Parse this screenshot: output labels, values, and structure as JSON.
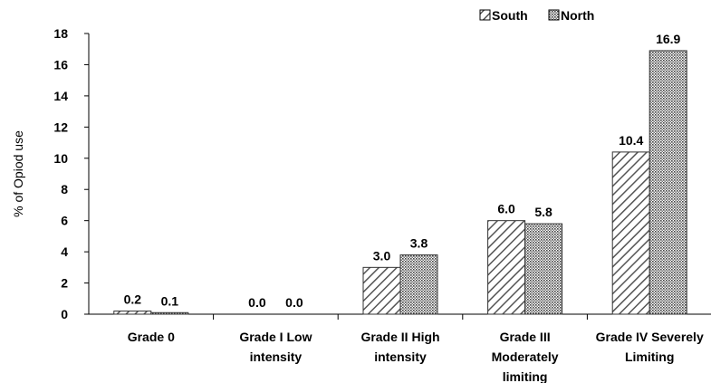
{
  "chart_data": {
    "type": "bar",
    "categories": [
      [
        "Grade 0"
      ],
      [
        "Grade I Low",
        "intensity"
      ],
      [
        "Grade II High",
        "intensity"
      ],
      [
        "Grade III",
        "Moderately",
        "limiting"
      ],
      [
        "Grade IV Severely",
        "Limiting"
      ]
    ],
    "series": [
      {
        "name": "South",
        "values": [
          0.2,
          0.0,
          3.0,
          6.0,
          10.4
        ],
        "labels": [
          "0.2",
          "0.0",
          "3.0",
          "6.0",
          "10.4"
        ],
        "pattern": "diagonal-hatch"
      },
      {
        "name": "North",
        "values": [
          0.1,
          0.0,
          3.8,
          5.8,
          16.9
        ],
        "labels": [
          "0.1",
          "0.0",
          "3.8",
          "5.8",
          "16.9"
        ],
        "pattern": "crosshatch"
      }
    ],
    "ylabel": "% of Opiod use",
    "ylim": [
      0,
      18
    ],
    "yticks": [
      "0",
      "2",
      "4",
      "6",
      "8",
      "10",
      "12",
      "14",
      "16",
      "18"
    ],
    "grid": false,
    "legend_position": "top-right"
  }
}
